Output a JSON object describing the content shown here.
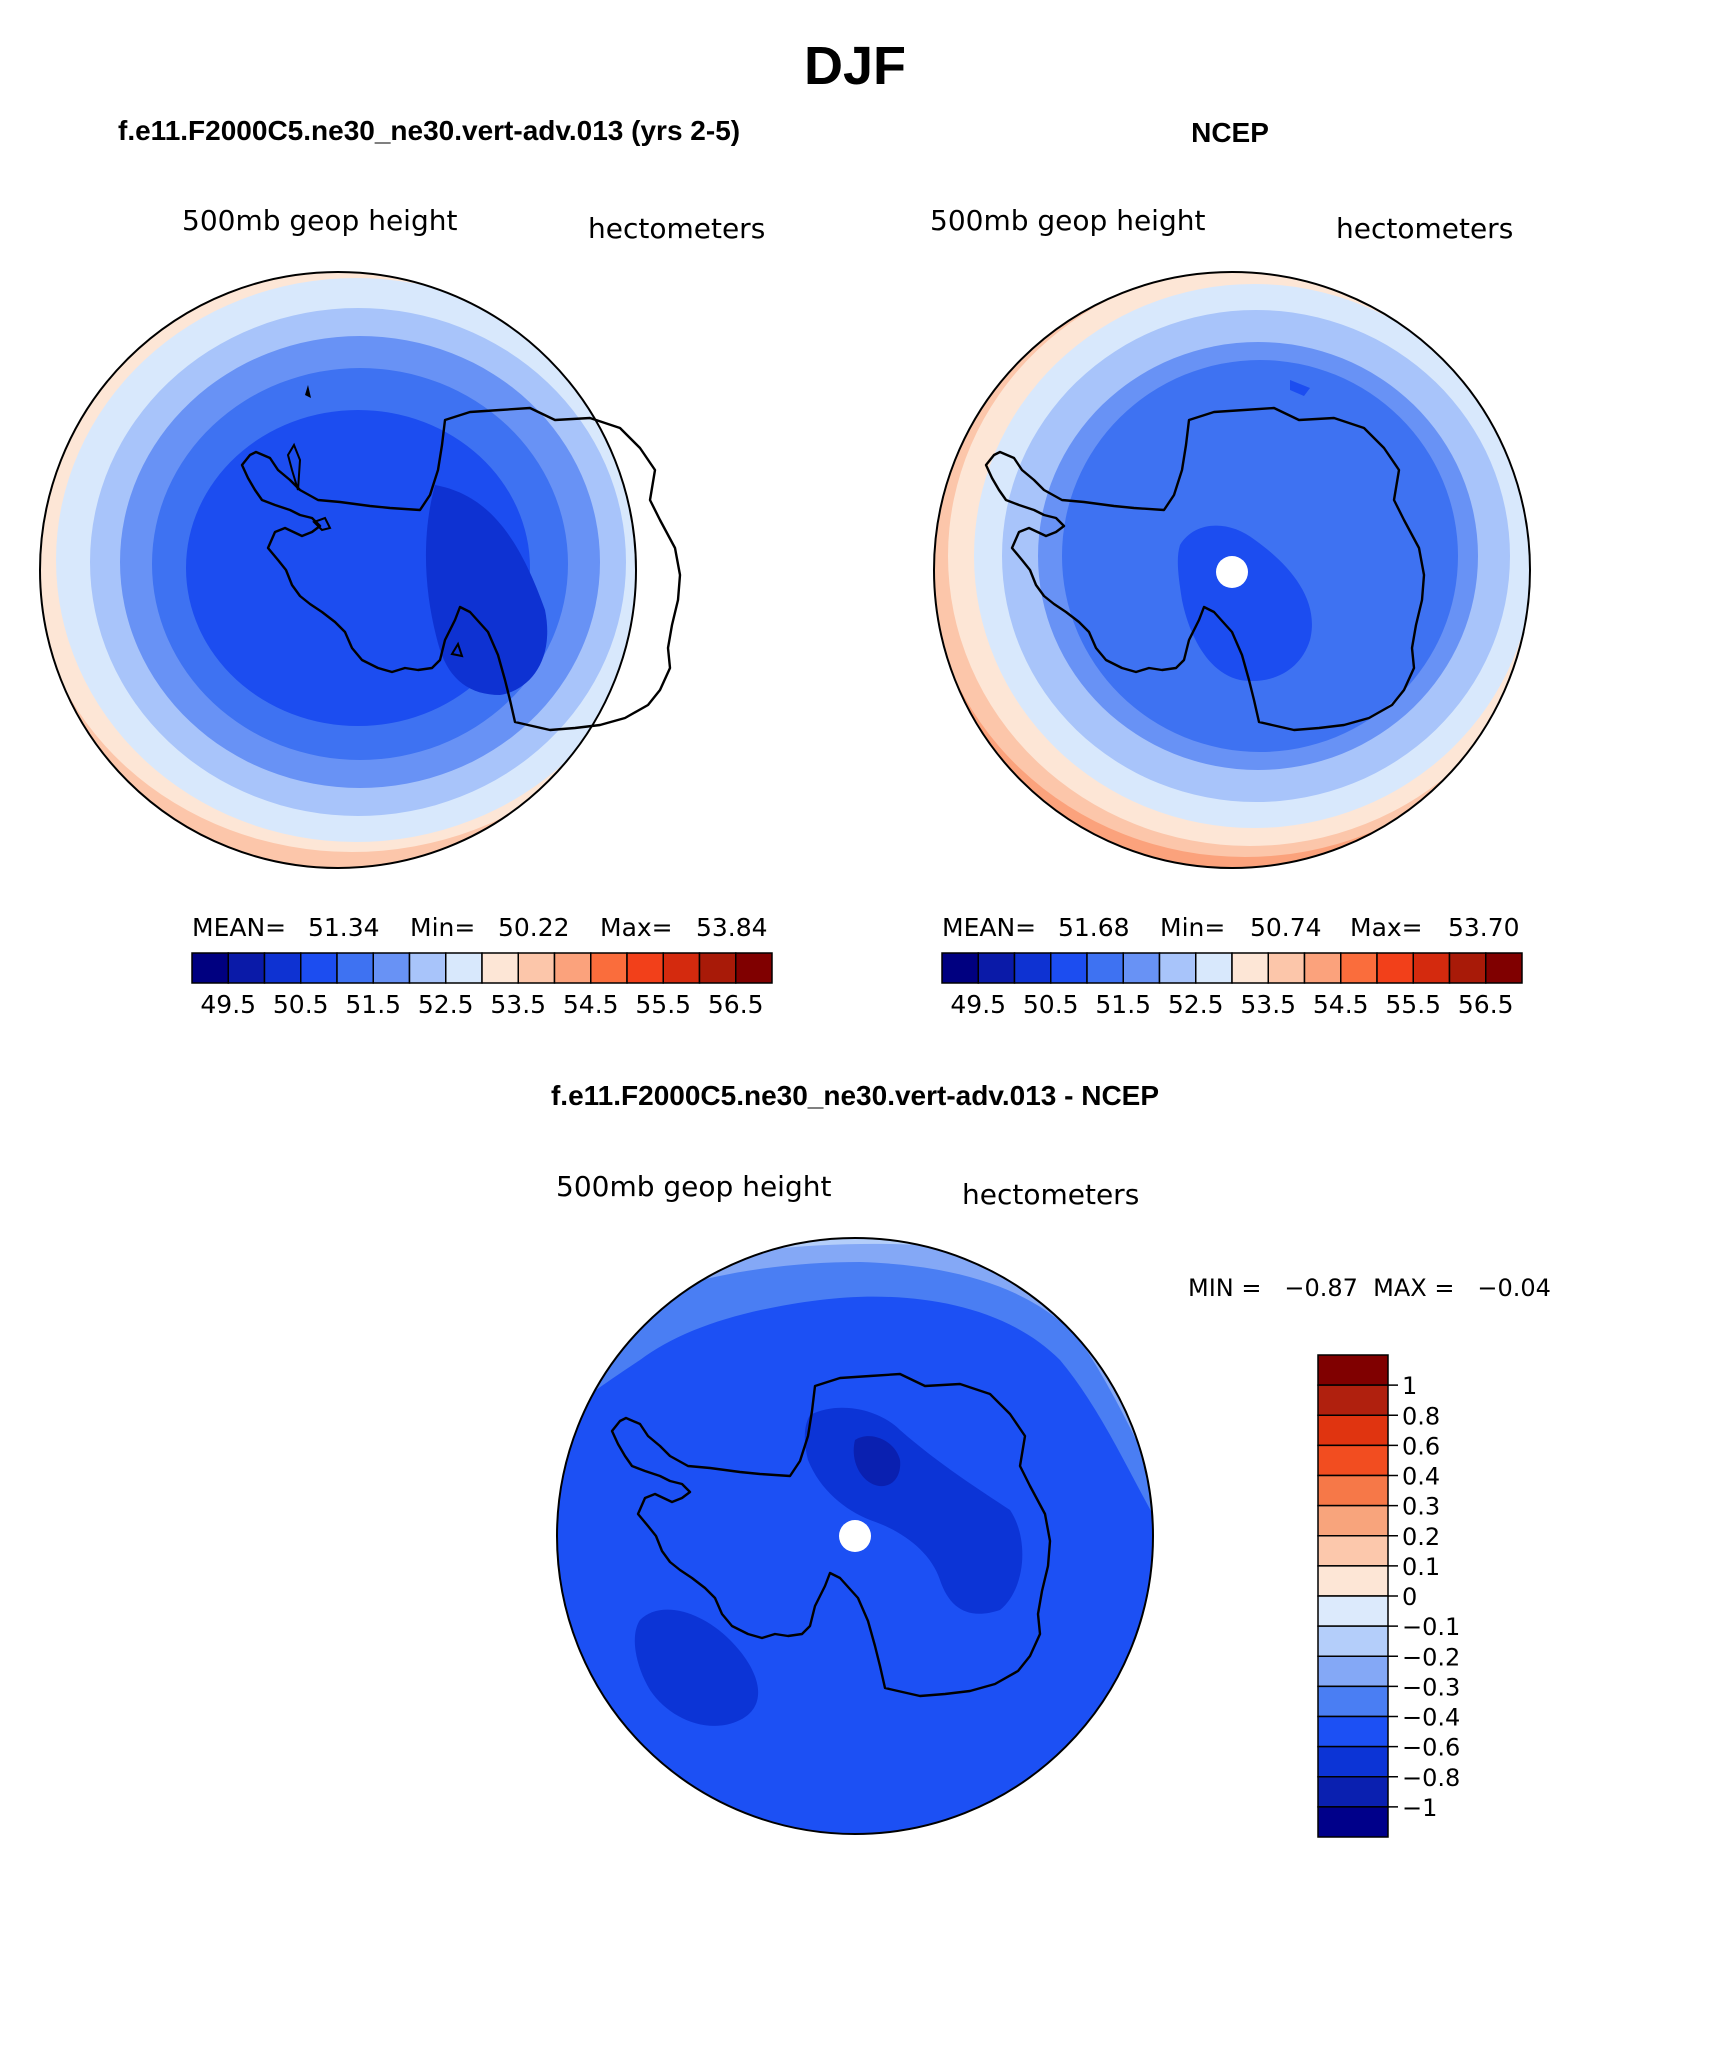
{
  "figure": {
    "season": "DJF",
    "panel1": {
      "title": "f.e11.F2000C5.ne30_ne30.vert-adv.013 (yrs 2-5)",
      "left_label": "500mb  geop  height",
      "right_label": "hectometers",
      "stats": {
        "mean_label": "MEAN=",
        "mean": "51.34",
        "min_label": "Min=",
        "min": "50.22",
        "max_label": "Max=",
        "max": "53.84"
      }
    },
    "panel2": {
      "title": "NCEP",
      "left_label": "500mb  geop  height",
      "right_label": "hectometers",
      "stats": {
        "mean_label": "MEAN=",
        "mean": "51.68",
        "min_label": "Min=",
        "min": "50.74",
        "max_label": "Max=",
        "max": "53.70"
      }
    },
    "panel3": {
      "title": "f.e11.F2000C5.ne30_ne30.vert-adv.013 - NCEP",
      "left_label": "500mb  geop  height",
      "right_label": "hectometers",
      "minmax_text": "MIN =   −0.87  MAX =   −0.04"
    },
    "abs_colorbar": {
      "colors": [
        "#000080",
        "#0a1aa8",
        "#0e32d2",
        "#1c4df0",
        "#3e72f2",
        "#6892f5",
        "#a8c4fa",
        "#d8e8fc",
        "#fde6d6",
        "#fcc6aa",
        "#fba27c",
        "#fa6d3c",
        "#f2401a",
        "#d42a0e",
        "#a81a08",
        "#800000"
      ],
      "labels": [
        "49.5",
        "50.5",
        "51.5",
        "52.5",
        "53.5",
        "54.5",
        "55.5",
        "56.5"
      ]
    },
    "diff_colorbar": {
      "colors_top_to_bottom": [
        "#800000",
        "#b0200e",
        "#e03410",
        "#f24d20",
        "#f67848",
        "#f8a47c",
        "#fcc8ac",
        "#fde6d6",
        "#dceafc",
        "#b4cefa",
        "#84a8f6",
        "#4a7ef3",
        "#1c50f4",
        "#0c34d6",
        "#0a20b0",
        "#00008a"
      ],
      "labels": [
        "1",
        "0.8",
        "0.6",
        "0.4",
        "0.3",
        "0.2",
        "0.1",
        "0",
        "−0.1",
        "−0.2",
        "−0.3",
        "−0.4",
        "−0.6",
        "−0.8",
        "−1"
      ]
    },
    "map_colors": {
      "deep": "#0e32d2",
      "dark": "#1c4df0",
      "mid": "#3e72f2",
      "light": "#6892f5",
      "pale": "#a8c4fa",
      "palest": "#d8e8fc",
      "peach": "#fde6d6",
      "salmon": "#fcc6aa",
      "coast": "#000000"
    }
  }
}
